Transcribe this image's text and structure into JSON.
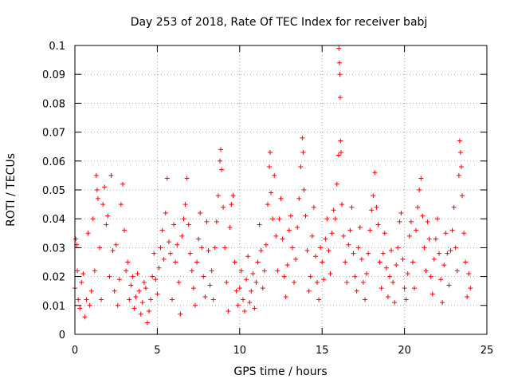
{
  "chart_data": {
    "type": "scatter",
    "title": "Day 253 of 2018, Rate Of TEC Index for receiver babj",
    "xlabel": "GPS time / hours",
    "ylabel": "ROTI / TECUs",
    "xlim": [
      0,
      25
    ],
    "ylim": [
      0,
      0.1
    ],
    "x_ticks": [
      0,
      5,
      10,
      15,
      20,
      25
    ],
    "y_ticks": [
      0,
      0.01,
      0.02,
      0.03,
      0.04,
      0.05,
      0.06,
      0.07,
      0.08,
      0.09,
      0.1
    ],
    "x_tick_labels": [
      "0",
      "5",
      "10",
      "15",
      "20",
      "25"
    ],
    "y_tick_labels": [
      "0",
      "0.01",
      "0.02",
      "0.03",
      "0.04",
      "0.05",
      "0.06",
      "0.07",
      "0.08",
      "0.09",
      "0.1"
    ],
    "grid": true,
    "marker": "+",
    "marker_color": "#ff0000",
    "series": [
      {
        "points": [
          [
            0.0,
            0.016
          ],
          [
            0.05,
            0.033
          ],
          [
            0.1,
            0.031
          ],
          [
            0.15,
            0.022
          ],
          [
            0.2,
            0.012
          ],
          [
            0.3,
            0.009
          ],
          [
            0.4,
            0.018
          ],
          [
            0.5,
            0.021
          ],
          [
            0.6,
            0.006
          ],
          [
            0.7,
            0.012
          ],
          [
            0.8,
            0.035
          ],
          [
            0.9,
            0.01
          ],
          [
            1.0,
            0.015
          ],
          [
            1.1,
            0.04
          ],
          [
            1.2,
            0.022
          ],
          [
            1.3,
            0.055
          ],
          [
            1.35,
            0.05
          ],
          [
            1.4,
            0.047
          ],
          [
            1.5,
            0.03
          ],
          [
            1.6,
            0.012
          ],
          [
            1.7,
            0.045
          ],
          [
            1.8,
            0.051
          ],
          [
            1.9,
            0.038
          ],
          [
            2.0,
            0.041
          ],
          [
            2.1,
            0.02
          ],
          [
            2.2,
            0.055
          ],
          [
            2.3,
            0.029
          ],
          [
            2.4,
            0.015
          ],
          [
            2.5,
            0.031
          ],
          [
            2.6,
            0.01
          ],
          [
            2.7,
            0.019
          ],
          [
            2.8,
            0.045
          ],
          [
            2.9,
            0.052
          ],
          [
            3.0,
            0.036
          ],
          [
            3.1,
            0.022
          ],
          [
            3.2,
            0.025
          ],
          [
            3.3,
            0.012
          ],
          [
            3.4,
            0.017
          ],
          [
            3.5,
            0.02
          ],
          [
            3.6,
            0.009
          ],
          [
            3.7,
            0.013
          ],
          [
            3.8,
            0.021
          ],
          [
            3.9,
            0.015
          ],
          [
            4.0,
            0.007
          ],
          [
            4.1,
            0.011
          ],
          [
            4.2,
            0.018
          ],
          [
            4.3,
            0.016
          ],
          [
            4.4,
            0.004
          ],
          [
            4.5,
            0.008
          ],
          [
            4.6,
            0.012
          ],
          [
            4.7,
            0.02
          ],
          [
            4.8,
            0.028
          ],
          [
            4.9,
            0.019
          ],
          [
            5.0,
            0.014
          ],
          [
            5.1,
            0.023
          ],
          [
            5.2,
            0.03
          ],
          [
            5.3,
            0.036
          ],
          [
            5.4,
            0.026
          ],
          [
            5.5,
            0.042
          ],
          [
            5.6,
            0.054
          ],
          [
            5.7,
            0.032
          ],
          [
            5.8,
            0.028
          ],
          [
            5.9,
            0.012
          ],
          [
            6.0,
            0.038
          ],
          [
            6.1,
            0.025
          ],
          [
            6.2,
            0.031
          ],
          [
            6.3,
            0.018
          ],
          [
            6.4,
            0.007
          ],
          [
            6.5,
            0.034
          ],
          [
            6.6,
            0.04
          ],
          [
            6.7,
            0.045
          ],
          [
            6.8,
            0.054
          ],
          [
            6.9,
            0.038
          ],
          [
            7.0,
            0.028
          ],
          [
            7.1,
            0.022
          ],
          [
            7.2,
            0.016
          ],
          [
            7.3,
            0.01
          ],
          [
            7.4,
            0.025
          ],
          [
            7.5,
            0.033
          ],
          [
            7.6,
            0.042
          ],
          [
            7.7,
            0.03
          ],
          [
            7.8,
            0.02
          ],
          [
            7.9,
            0.013
          ],
          [
            8.0,
            0.039
          ],
          [
            8.1,
            0.029
          ],
          [
            8.2,
            0.017
          ],
          [
            8.3,
            0.022
          ],
          [
            8.4,
            0.012
          ],
          [
            8.5,
            0.03
          ],
          [
            8.6,
            0.039
          ],
          [
            8.7,
            0.048
          ],
          [
            8.8,
            0.06
          ],
          [
            8.85,
            0.064
          ],
          [
            8.9,
            0.057
          ],
          [
            9.0,
            0.044
          ],
          [
            9.1,
            0.03
          ],
          [
            9.2,
            0.018
          ],
          [
            9.3,
            0.008
          ],
          [
            9.4,
            0.037
          ],
          [
            9.5,
            0.045
          ],
          [
            9.6,
            0.048
          ],
          [
            9.7,
            0.025
          ],
          [
            9.8,
            0.015
          ],
          [
            9.9,
            0.01
          ],
          [
            10.0,
            0.016
          ],
          [
            10.1,
            0.022
          ],
          [
            10.2,
            0.012
          ],
          [
            10.3,
            0.008
          ],
          [
            10.4,
            0.019
          ],
          [
            10.5,
            0.027
          ],
          [
            10.6,
            0.011
          ],
          [
            10.7,
            0.015
          ],
          [
            10.8,
            0.021
          ],
          [
            10.9,
            0.009
          ],
          [
            11.0,
            0.018
          ],
          [
            11.1,
            0.025
          ],
          [
            11.2,
            0.038
          ],
          [
            11.3,
            0.029
          ],
          [
            11.4,
            0.016
          ],
          [
            11.5,
            0.022
          ],
          [
            11.6,
            0.031
          ],
          [
            11.7,
            0.045
          ],
          [
            11.8,
            0.058
          ],
          [
            11.85,
            0.063
          ],
          [
            11.9,
            0.049
          ],
          [
            12.0,
            0.04
          ],
          [
            12.1,
            0.055
          ],
          [
            12.2,
            0.034
          ],
          [
            12.3,
            0.022
          ],
          [
            12.4,
            0.04
          ],
          [
            12.5,
            0.047
          ],
          [
            12.6,
            0.033
          ],
          [
            12.7,
            0.02
          ],
          [
            12.8,
            0.013
          ],
          [
            12.9,
            0.024
          ],
          [
            13.0,
            0.036
          ],
          [
            13.1,
            0.041
          ],
          [
            13.2,
            0.03
          ],
          [
            13.3,
            0.018
          ],
          [
            13.4,
            0.026
          ],
          [
            13.5,
            0.037
          ],
          [
            13.6,
            0.047
          ],
          [
            13.7,
            0.058
          ],
          [
            13.8,
            0.068
          ],
          [
            13.85,
            0.063
          ],
          [
            13.9,
            0.05
          ],
          [
            14.0,
            0.041
          ],
          [
            14.1,
            0.029
          ],
          [
            14.2,
            0.015
          ],
          [
            14.3,
            0.02
          ],
          [
            14.4,
            0.034
          ],
          [
            14.5,
            0.044
          ],
          [
            14.6,
            0.027
          ],
          [
            14.7,
            0.018
          ],
          [
            14.8,
            0.012
          ],
          [
            14.9,
            0.03
          ],
          [
            15.0,
            0.025
          ],
          [
            15.1,
            0.019
          ],
          [
            15.2,
            0.033
          ],
          [
            15.3,
            0.04
          ],
          [
            15.4,
            0.029
          ],
          [
            15.5,
            0.021
          ],
          [
            15.6,
            0.035
          ],
          [
            15.7,
            0.043
          ],
          [
            15.8,
            0.04
          ],
          [
            15.9,
            0.052
          ],
          [
            16.0,
            0.062
          ],
          [
            16.02,
            0.099
          ],
          [
            16.05,
            0.094
          ],
          [
            16.08,
            0.09
          ],
          [
            16.1,
            0.082
          ],
          [
            16.12,
            0.067
          ],
          [
            16.15,
            0.063
          ],
          [
            16.2,
            0.045
          ],
          [
            16.3,
            0.034
          ],
          [
            16.4,
            0.025
          ],
          [
            16.5,
            0.018
          ],
          [
            16.6,
            0.031
          ],
          [
            16.7,
            0.036
          ],
          [
            16.8,
            0.044
          ],
          [
            16.9,
            0.028
          ],
          [
            17.0,
            0.02
          ],
          [
            17.1,
            0.015
          ],
          [
            17.2,
            0.03
          ],
          [
            17.3,
            0.037
          ],
          [
            17.4,
            0.026
          ],
          [
            17.5,
            0.018
          ],
          [
            17.6,
            0.012
          ],
          [
            17.7,
            0.021
          ],
          [
            17.8,
            0.028
          ],
          [
            17.9,
            0.036
          ],
          [
            18.0,
            0.043
          ],
          [
            18.1,
            0.048
          ],
          [
            18.2,
            0.056
          ],
          [
            18.3,
            0.044
          ],
          [
            18.4,
            0.038
          ],
          [
            18.5,
            0.025
          ],
          [
            18.6,
            0.016
          ],
          [
            18.7,
            0.028
          ],
          [
            18.8,
            0.035
          ],
          [
            18.9,
            0.023
          ],
          [
            19.0,
            0.013
          ],
          [
            19.1,
            0.02
          ],
          [
            19.2,
            0.029
          ],
          [
            19.3,
            0.018
          ],
          [
            19.4,
            0.011
          ],
          [
            19.5,
            0.024
          ],
          [
            19.6,
            0.03
          ],
          [
            19.7,
            0.039
          ],
          [
            19.8,
            0.042
          ],
          [
            19.9,
            0.026
          ],
          [
            20.0,
            0.016
          ],
          [
            20.1,
            0.012
          ],
          [
            20.2,
            0.021
          ],
          [
            20.3,
            0.034
          ],
          [
            20.4,
            0.039
          ],
          [
            20.5,
            0.025
          ],
          [
            20.6,
            0.016
          ],
          [
            20.7,
            0.036
          ],
          [
            20.8,
            0.044
          ],
          [
            20.9,
            0.05
          ],
          [
            21.0,
            0.054
          ],
          [
            21.1,
            0.041
          ],
          [
            21.2,
            0.03
          ],
          [
            21.3,
            0.022
          ],
          [
            21.4,
            0.039
          ],
          [
            21.5,
            0.033
          ],
          [
            21.6,
            0.02
          ],
          [
            21.7,
            0.014
          ],
          [
            21.8,
            0.026
          ],
          [
            21.9,
            0.033
          ],
          [
            22.0,
            0.04
          ],
          [
            22.1,
            0.028
          ],
          [
            22.2,
            0.019
          ],
          [
            22.3,
            0.011
          ],
          [
            22.4,
            0.024
          ],
          [
            22.5,
            0.035
          ],
          [
            22.6,
            0.028
          ],
          [
            22.7,
            0.017
          ],
          [
            22.8,
            0.029
          ],
          [
            22.9,
            0.036
          ],
          [
            23.0,
            0.044
          ],
          [
            23.1,
            0.03
          ],
          [
            23.2,
            0.022
          ],
          [
            23.3,
            0.055
          ],
          [
            23.35,
            0.067
          ],
          [
            23.4,
            0.063
          ],
          [
            23.45,
            0.058
          ],
          [
            23.5,
            0.048
          ],
          [
            23.6,
            0.035
          ],
          [
            23.7,
            0.025
          ],
          [
            23.8,
            0.013
          ],
          [
            23.9,
            0.021
          ],
          [
            24.0,
            0.016
          ]
        ]
      }
    ]
  }
}
